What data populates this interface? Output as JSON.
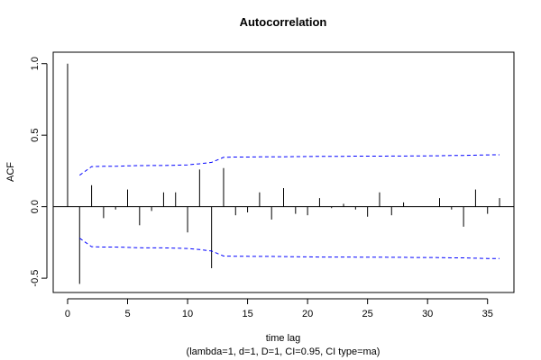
{
  "chart_data": {
    "type": "bar",
    "title": "Autocorrelation",
    "xlabel": "time lag",
    "subtitle": "(lambda=1, d=1, D=1, CI=0.95, CI type=ma)",
    "ylabel": "ACF",
    "xlim": [
      -1.2,
      37.2
    ],
    "ylim": [
      -0.6,
      1.08
    ],
    "x_ticks": [
      0,
      5,
      10,
      15,
      20,
      25,
      30,
      35
    ],
    "y_ticks": [
      -0.5,
      0.0,
      0.5,
      1.0
    ],
    "y_tick_labels": [
      "-0.5",
      "0.0",
      "0.5",
      "1.0"
    ],
    "lags": [
      0,
      1,
      2,
      3,
      4,
      5,
      6,
      7,
      8,
      9,
      10,
      11,
      12,
      13,
      14,
      15,
      16,
      17,
      18,
      19,
      20,
      21,
      22,
      23,
      24,
      25,
      26,
      27,
      28,
      29,
      30,
      31,
      32,
      33,
      34,
      35,
      36
    ],
    "acf": [
      1.0,
      -0.54,
      0.15,
      -0.08,
      -0.02,
      0.12,
      -0.13,
      -0.03,
      0.1,
      0.1,
      -0.18,
      0.26,
      -0.43,
      0.27,
      -0.06,
      -0.04,
      0.1,
      -0.09,
      0.13,
      -0.05,
      -0.06,
      0.06,
      -0.01,
      0.02,
      -0.02,
      -0.07,
      0.1,
      -0.06,
      0.03,
      0.0,
      0.0,
      0.06,
      -0.02,
      -0.14,
      0.12,
      -0.05,
      0.06
    ],
    "ci_lags": [
      1,
      2,
      3,
      4,
      5,
      6,
      7,
      8,
      9,
      10,
      11,
      12,
      13,
      14,
      15,
      16,
      17,
      18,
      19,
      20,
      21,
      22,
      23,
      24,
      25,
      26,
      27,
      28,
      29,
      30,
      31,
      32,
      33,
      34,
      35,
      36
    ],
    "ci_upper": [
      0.22,
      0.28,
      0.282,
      0.282,
      0.285,
      0.287,
      0.288,
      0.288,
      0.29,
      0.292,
      0.3,
      0.31,
      0.345,
      0.347,
      0.347,
      0.348,
      0.348,
      0.349,
      0.35,
      0.351,
      0.352,
      0.352,
      0.352,
      0.353,
      0.353,
      0.353,
      0.354,
      0.354,
      0.355,
      0.355,
      0.356,
      0.358,
      0.358,
      0.36,
      0.362,
      0.363
    ],
    "ci_color": "#0000ff",
    "bar_color": "#000000",
    "grid": false,
    "legend": "none"
  }
}
